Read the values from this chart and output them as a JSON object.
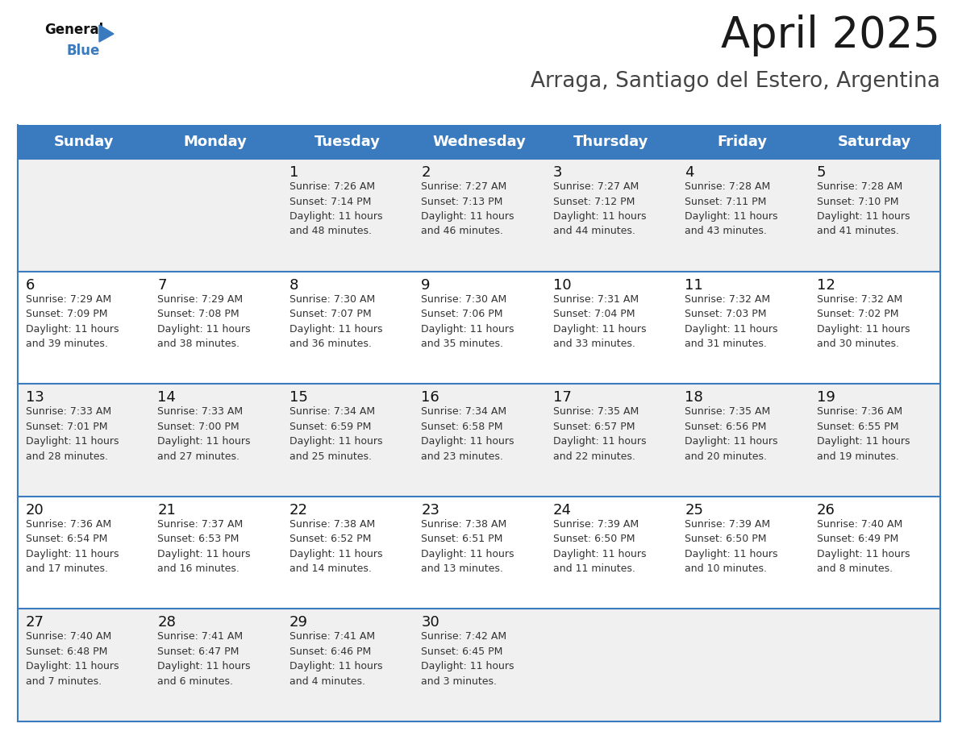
{
  "title": "April 2025",
  "subtitle": "Arraga, Santiago del Estero, Argentina",
  "header_color": "#3a7bbf",
  "header_text_color": "#ffffff",
  "row_bg_odd": "#f0f0f0",
  "row_bg_even": "#ffffff",
  "border_color": "#3a7bbf",
  "text_color": "#333333",
  "day_num_color": "#111111",
  "day_names": [
    "Sunday",
    "Monday",
    "Tuesday",
    "Wednesday",
    "Thursday",
    "Friday",
    "Saturday"
  ],
  "title_fontsize": 38,
  "subtitle_fontsize": 19,
  "header_fontsize": 13,
  "day_num_fontsize": 13,
  "cell_text_fontsize": 9,
  "weeks": [
    [
      {
        "day": null,
        "info": null
      },
      {
        "day": null,
        "info": null
      },
      {
        "day": 1,
        "info": "Sunrise: 7:26 AM\nSunset: 7:14 PM\nDaylight: 11 hours\nand 48 minutes."
      },
      {
        "day": 2,
        "info": "Sunrise: 7:27 AM\nSunset: 7:13 PM\nDaylight: 11 hours\nand 46 minutes."
      },
      {
        "day": 3,
        "info": "Sunrise: 7:27 AM\nSunset: 7:12 PM\nDaylight: 11 hours\nand 44 minutes."
      },
      {
        "day": 4,
        "info": "Sunrise: 7:28 AM\nSunset: 7:11 PM\nDaylight: 11 hours\nand 43 minutes."
      },
      {
        "day": 5,
        "info": "Sunrise: 7:28 AM\nSunset: 7:10 PM\nDaylight: 11 hours\nand 41 minutes."
      }
    ],
    [
      {
        "day": 6,
        "info": "Sunrise: 7:29 AM\nSunset: 7:09 PM\nDaylight: 11 hours\nand 39 minutes."
      },
      {
        "day": 7,
        "info": "Sunrise: 7:29 AM\nSunset: 7:08 PM\nDaylight: 11 hours\nand 38 minutes."
      },
      {
        "day": 8,
        "info": "Sunrise: 7:30 AM\nSunset: 7:07 PM\nDaylight: 11 hours\nand 36 minutes."
      },
      {
        "day": 9,
        "info": "Sunrise: 7:30 AM\nSunset: 7:06 PM\nDaylight: 11 hours\nand 35 minutes."
      },
      {
        "day": 10,
        "info": "Sunrise: 7:31 AM\nSunset: 7:04 PM\nDaylight: 11 hours\nand 33 minutes."
      },
      {
        "day": 11,
        "info": "Sunrise: 7:32 AM\nSunset: 7:03 PM\nDaylight: 11 hours\nand 31 minutes."
      },
      {
        "day": 12,
        "info": "Sunrise: 7:32 AM\nSunset: 7:02 PM\nDaylight: 11 hours\nand 30 minutes."
      }
    ],
    [
      {
        "day": 13,
        "info": "Sunrise: 7:33 AM\nSunset: 7:01 PM\nDaylight: 11 hours\nand 28 minutes."
      },
      {
        "day": 14,
        "info": "Sunrise: 7:33 AM\nSunset: 7:00 PM\nDaylight: 11 hours\nand 27 minutes."
      },
      {
        "day": 15,
        "info": "Sunrise: 7:34 AM\nSunset: 6:59 PM\nDaylight: 11 hours\nand 25 minutes."
      },
      {
        "day": 16,
        "info": "Sunrise: 7:34 AM\nSunset: 6:58 PM\nDaylight: 11 hours\nand 23 minutes."
      },
      {
        "day": 17,
        "info": "Sunrise: 7:35 AM\nSunset: 6:57 PM\nDaylight: 11 hours\nand 22 minutes."
      },
      {
        "day": 18,
        "info": "Sunrise: 7:35 AM\nSunset: 6:56 PM\nDaylight: 11 hours\nand 20 minutes."
      },
      {
        "day": 19,
        "info": "Sunrise: 7:36 AM\nSunset: 6:55 PM\nDaylight: 11 hours\nand 19 minutes."
      }
    ],
    [
      {
        "day": 20,
        "info": "Sunrise: 7:36 AM\nSunset: 6:54 PM\nDaylight: 11 hours\nand 17 minutes."
      },
      {
        "day": 21,
        "info": "Sunrise: 7:37 AM\nSunset: 6:53 PM\nDaylight: 11 hours\nand 16 minutes."
      },
      {
        "day": 22,
        "info": "Sunrise: 7:38 AM\nSunset: 6:52 PM\nDaylight: 11 hours\nand 14 minutes."
      },
      {
        "day": 23,
        "info": "Sunrise: 7:38 AM\nSunset: 6:51 PM\nDaylight: 11 hours\nand 13 minutes."
      },
      {
        "day": 24,
        "info": "Sunrise: 7:39 AM\nSunset: 6:50 PM\nDaylight: 11 hours\nand 11 minutes."
      },
      {
        "day": 25,
        "info": "Sunrise: 7:39 AM\nSunset: 6:50 PM\nDaylight: 11 hours\nand 10 minutes."
      },
      {
        "day": 26,
        "info": "Sunrise: 7:40 AM\nSunset: 6:49 PM\nDaylight: 11 hours\nand 8 minutes."
      }
    ],
    [
      {
        "day": 27,
        "info": "Sunrise: 7:40 AM\nSunset: 6:48 PM\nDaylight: 11 hours\nand 7 minutes."
      },
      {
        "day": 28,
        "info": "Sunrise: 7:41 AM\nSunset: 6:47 PM\nDaylight: 11 hours\nand 6 minutes."
      },
      {
        "day": 29,
        "info": "Sunrise: 7:41 AM\nSunset: 6:46 PM\nDaylight: 11 hours\nand 4 minutes."
      },
      {
        "day": 30,
        "info": "Sunrise: 7:42 AM\nSunset: 6:45 PM\nDaylight: 11 hours\nand 3 minutes."
      },
      {
        "day": null,
        "info": null
      },
      {
        "day": null,
        "info": null
      },
      {
        "day": null,
        "info": null
      }
    ]
  ]
}
